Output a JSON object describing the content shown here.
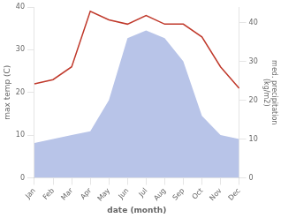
{
  "chart_data": {
    "type": "line",
    "categories": [
      "Jan",
      "Feb",
      "Mar",
      "Apr",
      "May",
      "Jun",
      "Jul",
      "Aug",
      "Sep",
      "Oct",
      "Nov",
      "Dec"
    ],
    "series": [
      {
        "type": "area",
        "axis": "y2",
        "color": "#b8c4e8",
        "values": [
          9,
          10,
          11,
          12,
          20,
          36,
          38,
          36,
          30,
          16,
          11,
          10
        ]
      },
      {
        "type": "line",
        "color": "#c0392b",
        "values": [
          22,
          23,
          26,
          39,
          37,
          36,
          38,
          36,
          36,
          33,
          26,
          21
        ]
      }
    ],
    "xlabel": "date (month)",
    "ylabel": "max temp (C)",
    "y2label": "med. precipitation\n(kg/m2)",
    "ylim": [
      0,
      40
    ],
    "yticks": [
      0,
      10,
      20,
      30,
      40
    ],
    "y2lim": [
      0,
      44
    ],
    "y2ticks": [
      0,
      10,
      20,
      30,
      40
    ],
    "grid": false
  }
}
